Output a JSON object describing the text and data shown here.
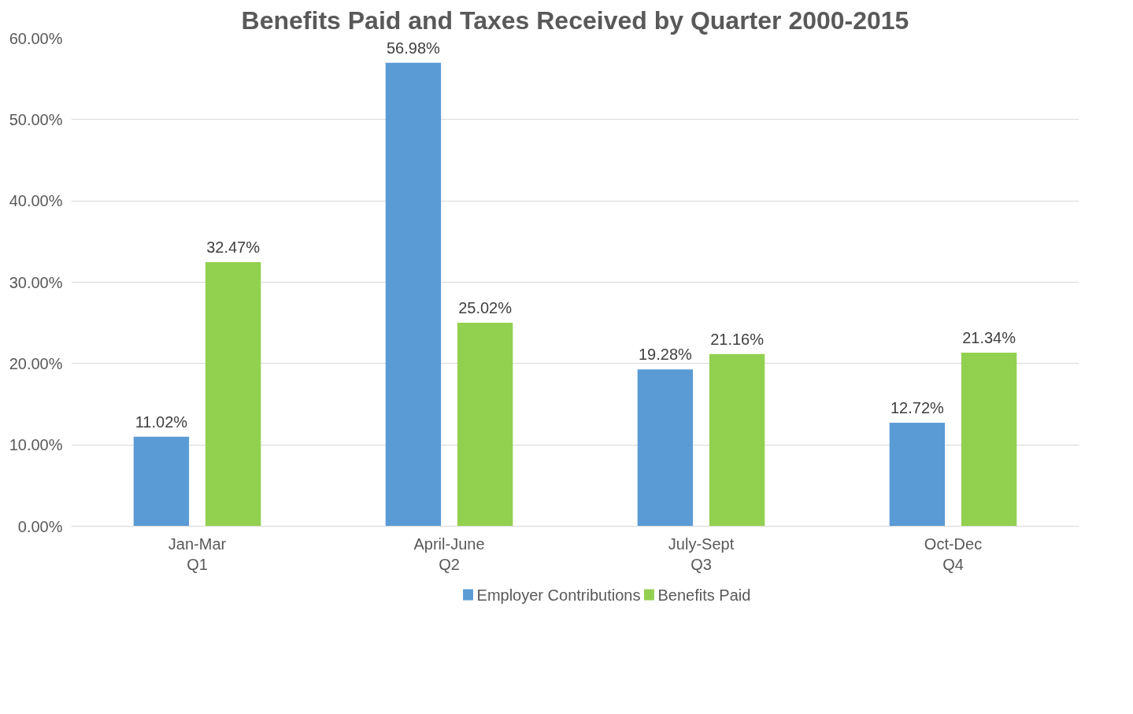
{
  "chart_data": {
    "type": "bar",
    "title": "Benefits Paid and Taxes Received by Quarter 2000-2015",
    "categories": [
      "Jan-Mar\nQ1",
      "April-June\nQ2",
      "July-Sept\nQ3",
      "Oct-Dec\nQ4"
    ],
    "series": [
      {
        "name": "Employer Contributions",
        "color": "#5b9bd5",
        "values": [
          11.02,
          56.98,
          19.28,
          12.72
        ],
        "value_labels": [
          "11.02%",
          "56.98%",
          "19.28%",
          "12.72%"
        ]
      },
      {
        "name": "Benefits Paid",
        "color": "#92d050",
        "values": [
          32.47,
          25.02,
          21.16,
          21.34
        ],
        "value_labels": [
          "32.47%",
          "25.02%",
          "21.16%",
          "21.34%"
        ]
      }
    ],
    "ylim": [
      0,
      60
    ],
    "yticks": [
      {
        "value": 0,
        "label": "0.00%"
      },
      {
        "value": 10,
        "label": "10.00%"
      },
      {
        "value": 20,
        "label": "20.00%"
      },
      {
        "value": 30,
        "label": "30.00%"
      },
      {
        "value": 40,
        "label": "40.00%"
      },
      {
        "value": 50,
        "label": "50.00%"
      },
      {
        "value": 60,
        "label": "60.00%"
      }
    ],
    "grid": "y",
    "legend": "bottom"
  }
}
